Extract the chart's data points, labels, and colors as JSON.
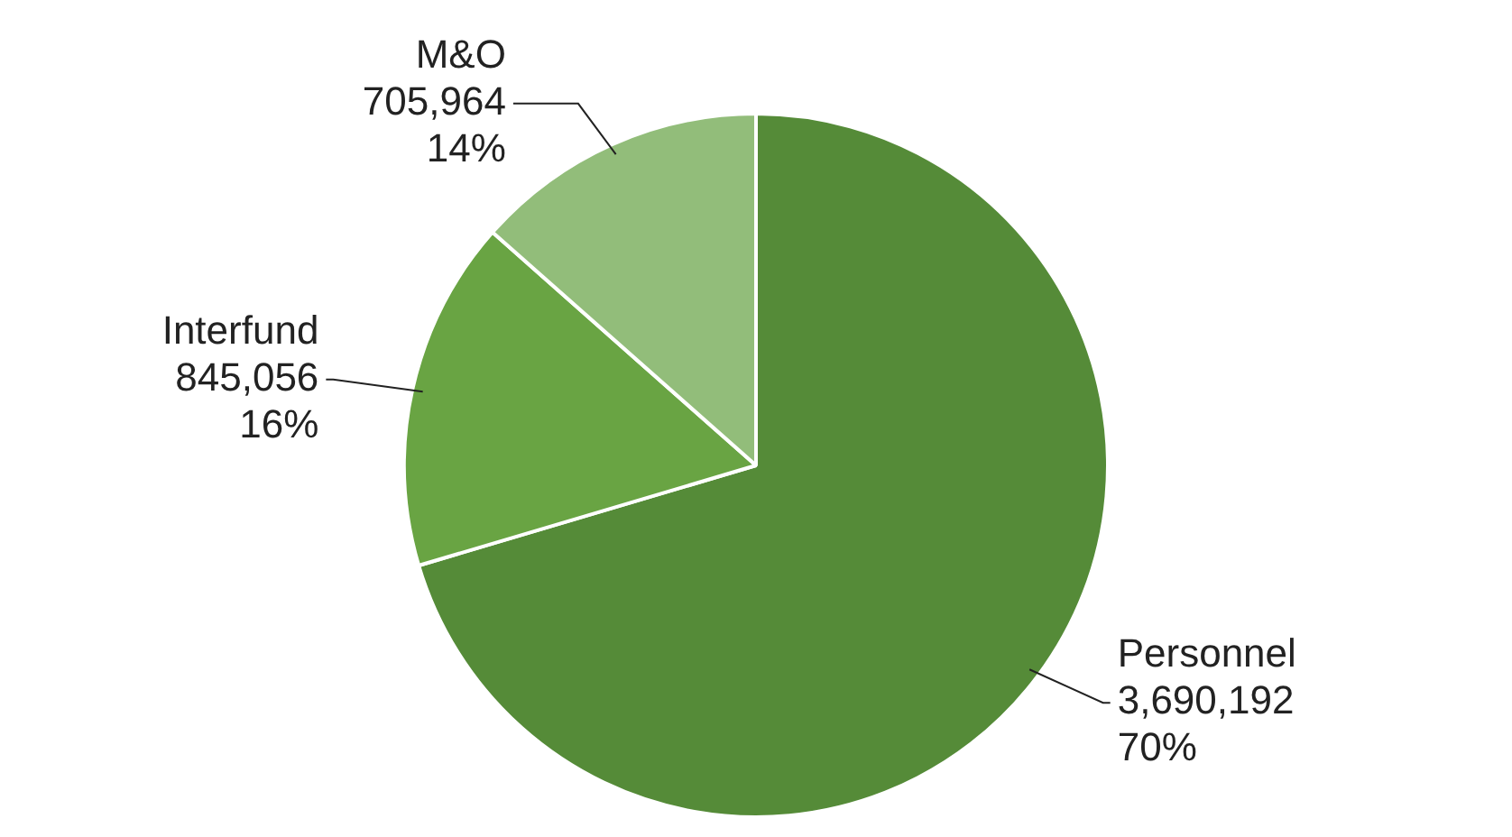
{
  "chart_data": {
    "type": "pie",
    "categories": [
      "Personnel",
      "Interfund",
      "M&O"
    ],
    "values": [
      3690192,
      845056,
      705964
    ],
    "colors": [
      "#558b38",
      "#69a443",
      "#92bd7a"
    ],
    "value_labels": [
      "3,690,192\n70%",
      "845,056\n16%",
      "705,964\n14%"
    ]
  }
}
